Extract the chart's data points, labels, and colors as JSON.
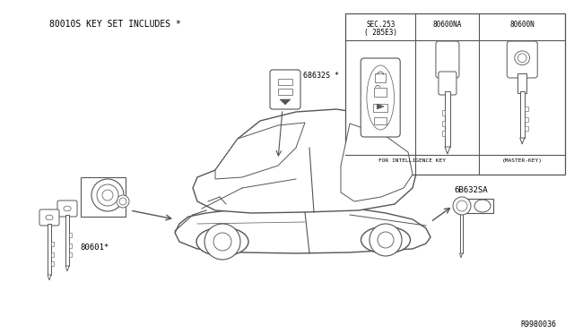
{
  "bg_color": "#ffffff",
  "line_color": "#555555",
  "text_color": "#000000",
  "fig_width": 6.4,
  "fig_height": 3.72,
  "dpi": 100,
  "title_text": "80010S KEY SET INCLUDES *",
  "part_number_80601": "80601*",
  "part_number_68632S": "68632S *",
  "part_number_68632SA": "6B632SA",
  "part_number_80600NA": "80600NA",
  "part_number_80600N": "80600N",
  "sec_label": "SEC.253",
  "sec_label2": "( 2B5E3)",
  "intelligence_label": "FOR INTELLIGENCE KEY",
  "master_key_label": "(MASTER-KEY)",
  "diagram_ref": "R9980036"
}
